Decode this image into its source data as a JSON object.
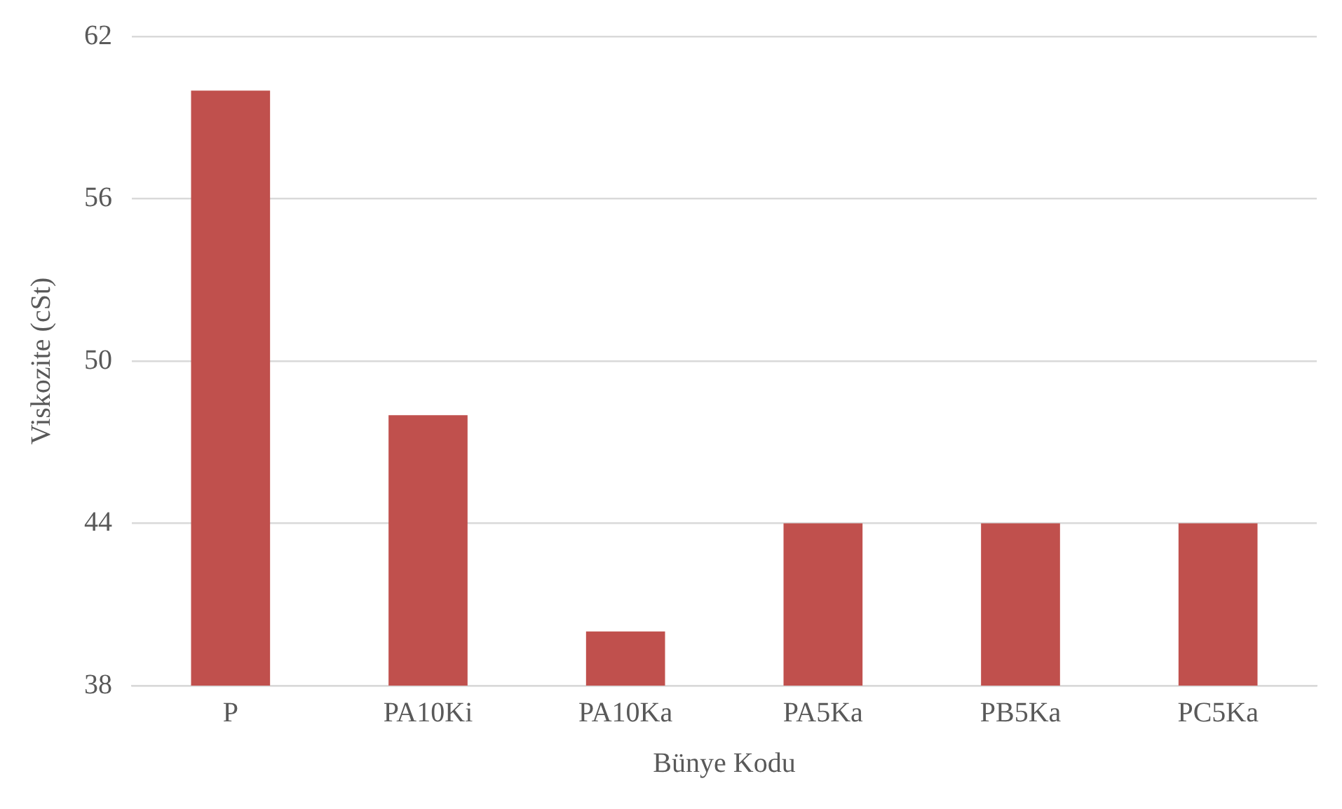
{
  "chart_data": {
    "type": "bar",
    "xlabel": "Bünye Kodu",
    "ylabel": "Viskozite (cSt)",
    "categories": [
      "P",
      "PA10Ki",
      "PA10Ka",
      "PA5Ka",
      "PB5Ka",
      "PC5Ka"
    ],
    "values": [
      60,
      48,
      40,
      44,
      44,
      44
    ],
    "color": "#c0504d",
    "ylim": [
      38,
      62
    ],
    "yticks": [
      38,
      44,
      50,
      56,
      62
    ],
    "grid": "y"
  }
}
